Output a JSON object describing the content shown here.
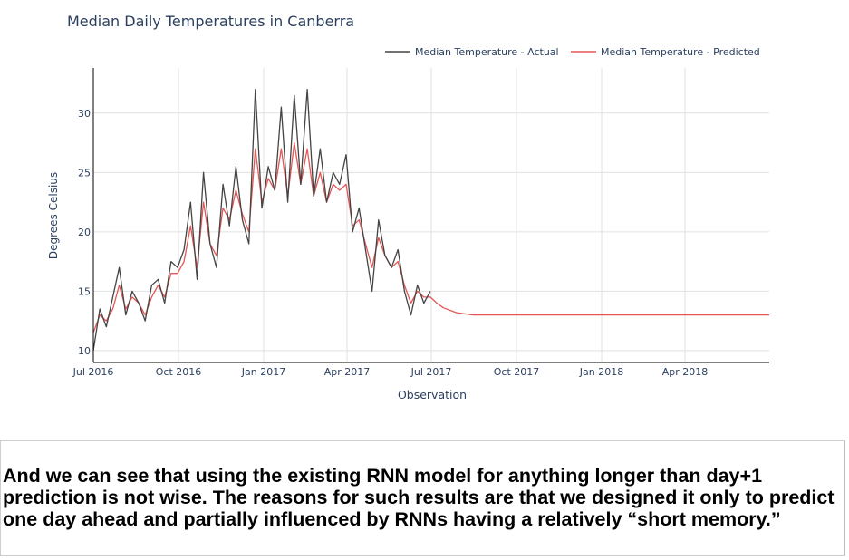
{
  "chart_data": {
    "type": "line",
    "title": "Median Daily Temperatures in Canberra",
    "xlabel": "Observation",
    "ylabel": "Degrees Celsius",
    "x_ticks": [
      "Jul 2016",
      "Oct 2016",
      "Jan 2017",
      "Apr 2017",
      "Jul 2017",
      "Oct 2017",
      "Jan 2018",
      "Apr 2018"
    ],
    "y_ticks": [
      10,
      15,
      20,
      25,
      30
    ],
    "xlim": [
      "2016-07-01",
      "2018-07-01"
    ],
    "ylim": [
      9,
      33.8
    ],
    "grid": true,
    "legend_position": "top-right",
    "series": [
      {
        "name": "Median Temperature - Actual",
        "color": "#444444",
        "x": [
          "2016-07-01",
          "2016-07-08",
          "2016-07-15",
          "2016-07-22",
          "2016-07-29",
          "2016-08-05",
          "2016-08-12",
          "2016-08-19",
          "2016-08-26",
          "2016-09-02",
          "2016-09-09",
          "2016-09-16",
          "2016-09-23",
          "2016-09-30",
          "2016-10-07",
          "2016-10-14",
          "2016-10-21",
          "2016-10-28",
          "2016-11-04",
          "2016-11-11",
          "2016-11-18",
          "2016-11-25",
          "2016-12-02",
          "2016-12-09",
          "2016-12-16",
          "2016-12-23",
          "2016-12-30",
          "2017-01-06",
          "2017-01-13",
          "2017-01-20",
          "2017-01-27",
          "2017-02-03",
          "2017-02-10",
          "2017-02-17",
          "2017-02-24",
          "2017-03-03",
          "2017-03-10",
          "2017-03-17",
          "2017-03-24",
          "2017-03-31",
          "2017-04-07",
          "2017-04-14",
          "2017-04-21",
          "2017-04-28",
          "2017-05-05",
          "2017-05-12",
          "2017-05-19",
          "2017-05-26",
          "2017-06-02",
          "2017-06-09",
          "2017-06-16",
          "2017-06-23",
          "2017-06-30"
        ],
        "values": [
          10.0,
          13.5,
          12.0,
          14.5,
          17.0,
          13.0,
          15.0,
          14.0,
          12.5,
          15.5,
          16.0,
          14.0,
          17.5,
          17.0,
          18.5,
          22.5,
          16.0,
          25.0,
          19.0,
          17.0,
          24.0,
          20.5,
          25.5,
          21.0,
          19.0,
          32.0,
          22.0,
          25.5,
          23.5,
          30.5,
          22.5,
          31.5,
          24.0,
          32.0,
          23.0,
          27.0,
          22.5,
          25.0,
          24.0,
          26.5,
          20.0,
          22.0,
          18.5,
          15.0,
          21.0,
          18.0,
          17.0,
          18.5,
          15.0,
          13.0,
          15.5,
          14.0,
          15.0
        ]
      },
      {
        "name": "Median Temperature - Predicted",
        "color": "#e45756",
        "x": [
          "2016-07-01",
          "2016-07-08",
          "2016-07-15",
          "2016-07-22",
          "2016-07-29",
          "2016-08-05",
          "2016-08-12",
          "2016-08-19",
          "2016-08-26",
          "2016-09-02",
          "2016-09-09",
          "2016-09-16",
          "2016-09-23",
          "2016-09-30",
          "2016-10-07",
          "2016-10-14",
          "2016-10-21",
          "2016-10-28",
          "2016-11-04",
          "2016-11-11",
          "2016-11-18",
          "2016-11-25",
          "2016-12-02",
          "2016-12-09",
          "2016-12-16",
          "2016-12-23",
          "2016-12-30",
          "2017-01-06",
          "2017-01-13",
          "2017-01-20",
          "2017-01-27",
          "2017-02-03",
          "2017-02-10",
          "2017-02-17",
          "2017-02-24",
          "2017-03-03",
          "2017-03-10",
          "2017-03-17",
          "2017-03-24",
          "2017-03-31",
          "2017-04-07",
          "2017-04-14",
          "2017-04-21",
          "2017-04-28",
          "2017-05-05",
          "2017-05-12",
          "2017-05-19",
          "2017-05-26",
          "2017-06-02",
          "2017-06-09",
          "2017-06-16",
          "2017-06-23",
          "2017-06-30",
          "2017-07-07",
          "2017-07-14",
          "2017-07-28",
          "2017-08-15",
          "2017-09-15",
          "2017-12-01",
          "2018-03-01",
          "2018-07-01"
        ],
        "values": [
          11.5,
          13.0,
          12.5,
          13.5,
          15.5,
          13.5,
          14.5,
          14.0,
          13.0,
          14.5,
          15.5,
          14.5,
          16.5,
          16.5,
          17.5,
          20.5,
          17.0,
          22.5,
          19.0,
          18.0,
          22.0,
          21.0,
          23.5,
          21.5,
          20.0,
          27.0,
          22.5,
          24.5,
          23.5,
          27.0,
          23.0,
          27.5,
          24.0,
          27.0,
          23.0,
          25.0,
          22.5,
          24.0,
          23.5,
          24.0,
          20.5,
          21.0,
          19.0,
          17.0,
          19.5,
          18.0,
          17.0,
          17.5,
          15.5,
          14.0,
          15.0,
          14.5,
          14.5,
          14.0,
          13.6,
          13.2,
          13.0,
          13.0,
          13.0,
          13.0,
          13.0
        ]
      }
    ]
  },
  "caption": "And we can see that using the existing RNN model for anything longer than day+1 prediction is not wise. The reasons for such results are that we designed it only to predict one day ahead and partially influenced by RNNs having a relatively “short memory.”"
}
